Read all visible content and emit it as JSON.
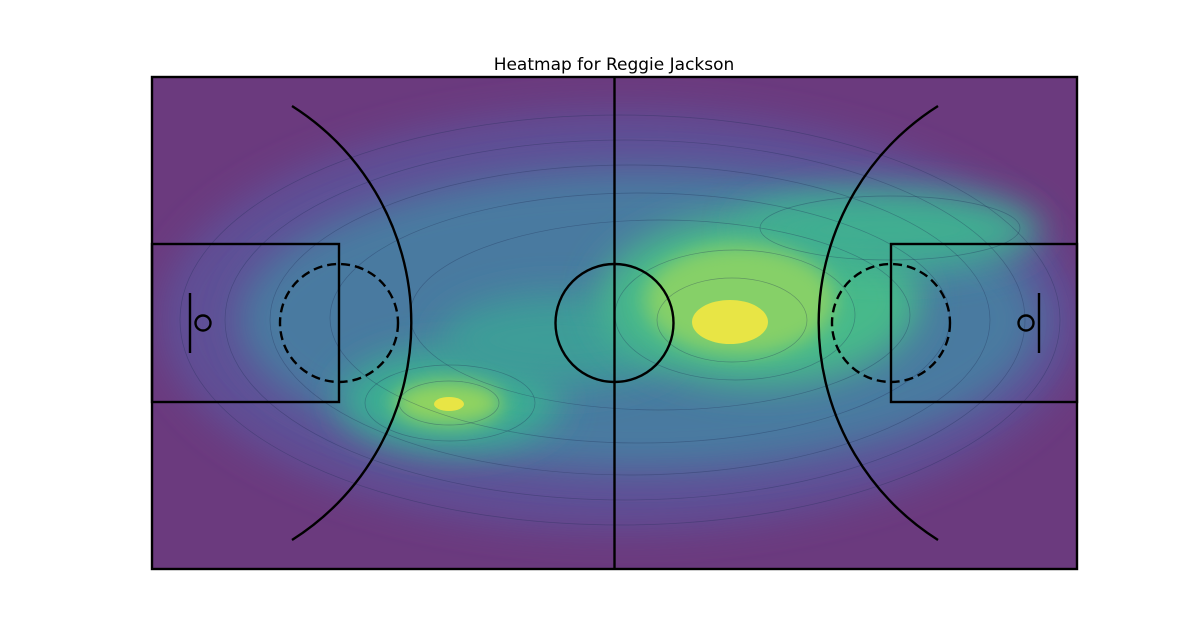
{
  "chart_data": {
    "type": "heatmap",
    "title": "Heatmap for Reggie Jackson",
    "xlabel": "",
    "ylabel": "",
    "grid": false,
    "legend": "none",
    "colormap": "viridis",
    "colors": {
      "background": "#6b3a7e",
      "low": "#5e4f96",
      "mid": "#3c9d98",
      "high": "#4fc37f",
      "peak": "#e8e545"
    },
    "hotspots": [
      {
        "name": "",
        "x": 0.32,
        "y": 0.66,
        "intensity": 1.0
      },
      {
        "name": "",
        "x": 0.63,
        "y": 0.5,
        "intensity": 1.0
      },
      {
        "name": "",
        "x": 0.72,
        "y": 0.34,
        "intensity": 0.55
      }
    ]
  }
}
